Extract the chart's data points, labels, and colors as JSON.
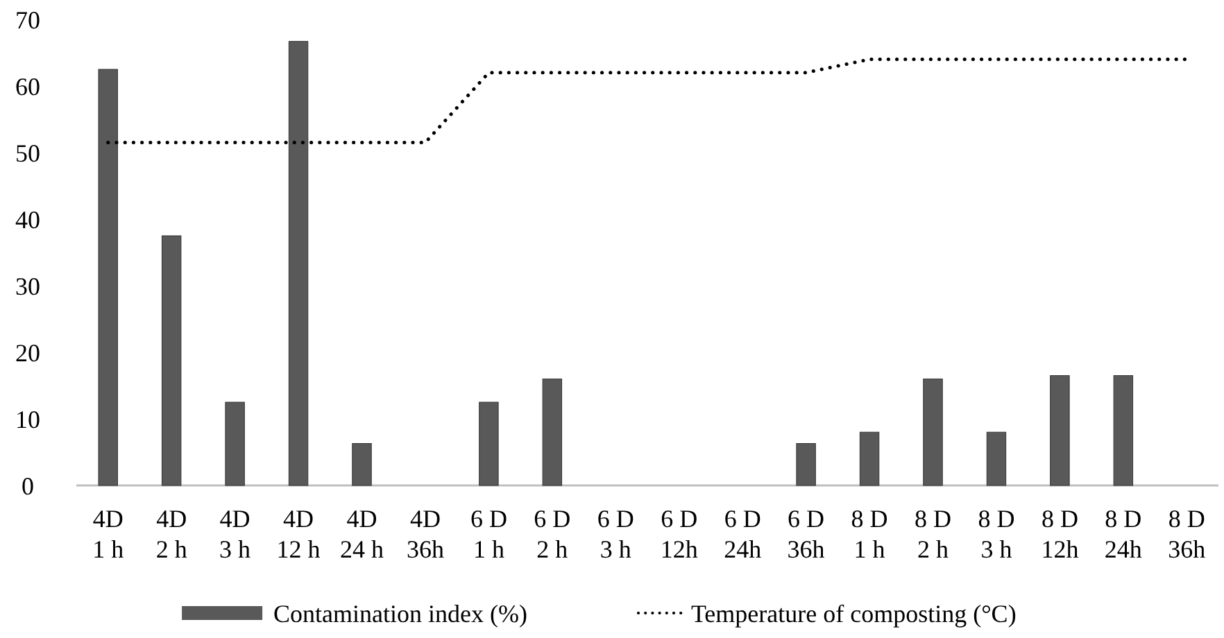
{
  "chart_data": {
    "type": "bar",
    "categories": [
      "4D\n1 h",
      "4D\n2 h",
      "4D\n3 h",
      "4D\n12 h",
      "4D\n24 h",
      "4D\n36h",
      "6 D\n1 h",
      "6 D\n2 h",
      "6 D\n3 h",
      "6 D\n12h",
      "6 D\n24h",
      "6 D\n36h",
      "8 D\n1 h",
      "8 D\n2 h",
      "8 D\n3 h",
      "8 D\n12h",
      "8 D\n24h",
      "8 D\n36h"
    ],
    "series": [
      {
        "name": "Contamination index (%)",
        "color": "#595959",
        "values": [
          62.5,
          37.5,
          12.5,
          66.7,
          6.3,
          0,
          12.5,
          16,
          0,
          0,
          0,
          6.3,
          8,
          16,
          8,
          16.5,
          16.5,
          0
        ]
      },
      {
        "name": "Temperature of composting (°C)",
        "type": "line",
        "color": "#000000",
        "line_style": "dotted",
        "values": [
          51.5,
          51.5,
          51.5,
          51.5,
          51.5,
          51.5,
          62,
          62,
          62,
          62,
          62,
          62,
          64,
          64,
          64,
          64,
          64,
          64
        ]
      }
    ],
    "ylim": [
      0,
      70
    ],
    "yticks": [
      0,
      10,
      20,
      30,
      40,
      50,
      60,
      70
    ],
    "grid": false,
    "legend": "bottom"
  }
}
